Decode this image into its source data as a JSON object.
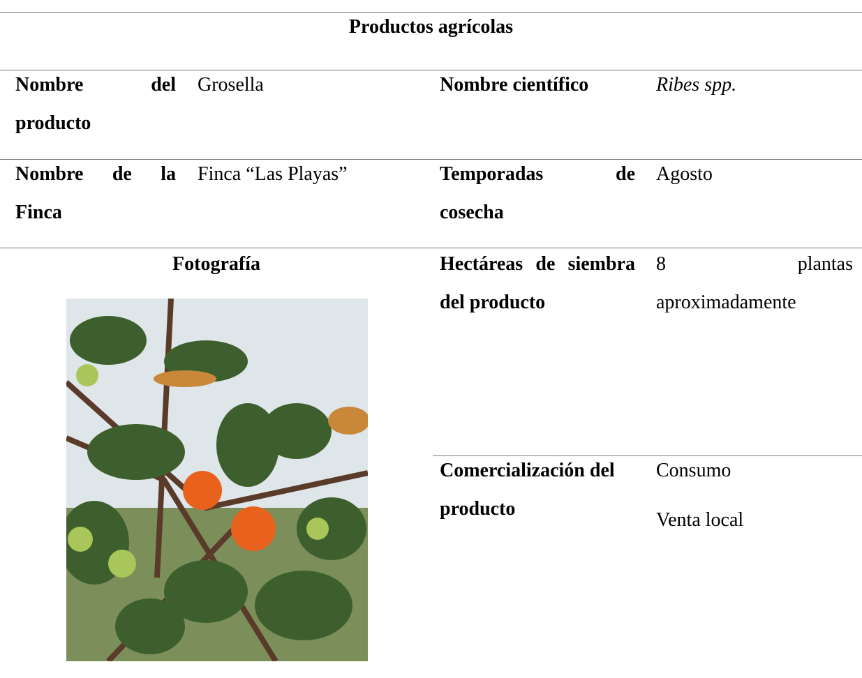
{
  "header": {
    "title": "Productos agrícolas"
  },
  "rows": [
    {
      "label": "Nombre del producto",
      "value": "Grosella",
      "label2": "Nombre científico",
      "value2": "Ribes spp."
    },
    {
      "label": "Nombre de la Finca",
      "value": "Finca “Las Playas”",
      "label2": "Temporadas de cosecha",
      "value2": "Agosto"
    }
  ],
  "photo": {
    "label": "Fotografía"
  },
  "planting": {
    "label": "Hectáreas de siembra del producto",
    "value": "8 plantas aproximadamente"
  },
  "commercialization": {
    "label": "Comercialización del producto",
    "values": [
      "Consumo",
      "Venta local"
    ]
  }
}
